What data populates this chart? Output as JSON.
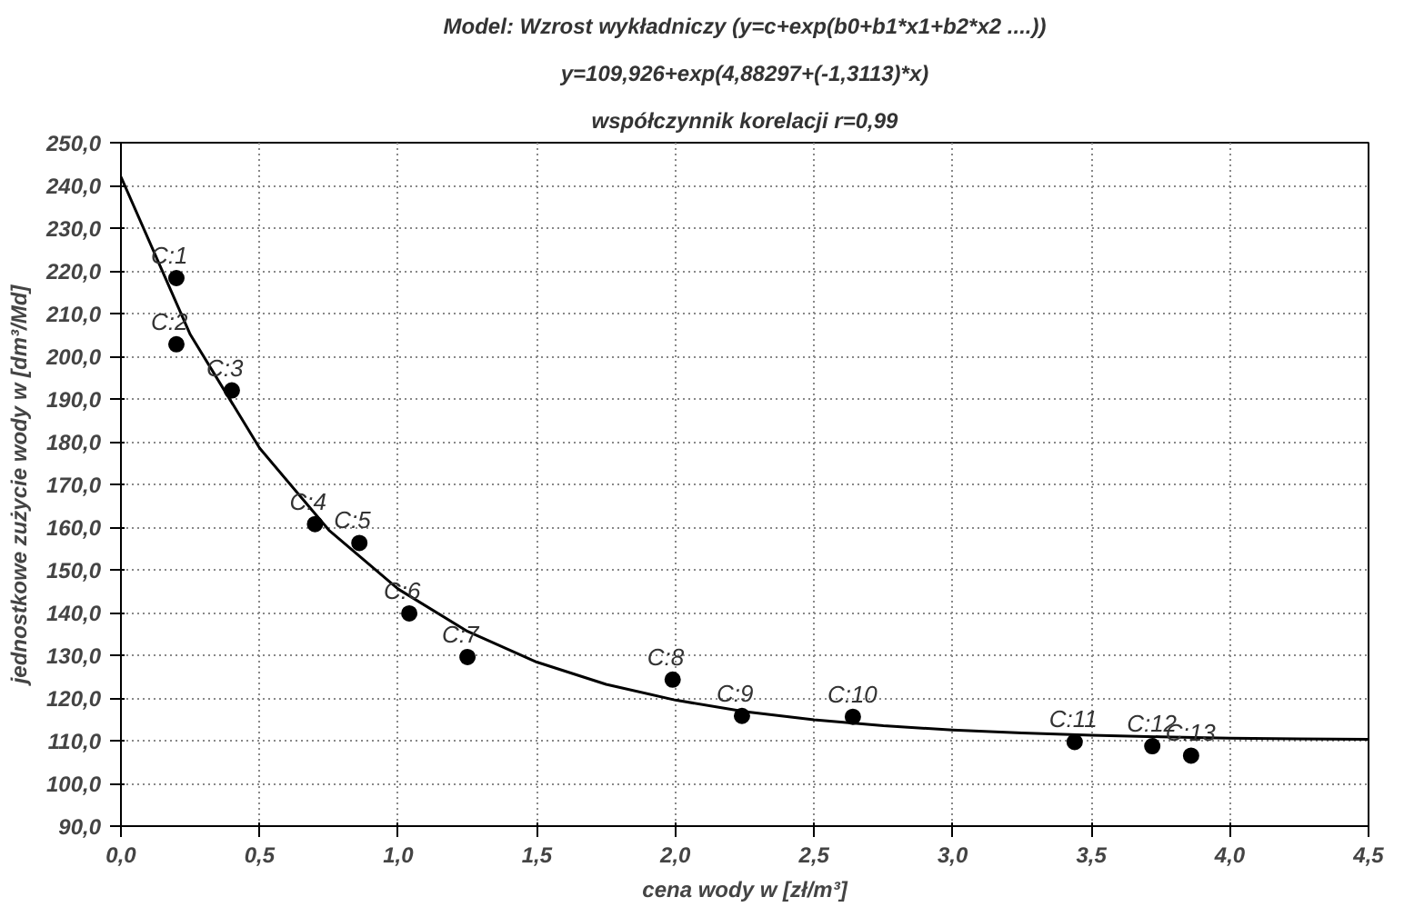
{
  "chart_data": {
    "type": "scatter",
    "title": "Model: Wzrost wykładniczy (y=c+exp(b0+b1*x1+b2*x2 ....))",
    "subtitle": "y=109,926+exp(4,88297+(-1,3113)*x)",
    "xlabel": "cena wody w [zł/m³]",
    "ylabel": "jednostkowe zużycie wody w [dm³/Md]",
    "series": [
      {
        "color": "#000000",
        "marker": "circle",
        "x": [
          0.2,
          0.2,
          0.4,
          0.7,
          0.86,
          1.04,
          1.25,
          1.99,
          2.24,
          2.64,
          3.44,
          3.72,
          3.86
        ],
        "values": [
          218.3,
          202.8,
          192.0,
          160.7,
          156.3,
          139.8,
          129.6,
          124.3,
          115.8,
          115.6,
          109.7,
          108.7,
          106.5
        ]
      },
      {
        "type": "line",
        "color": "#000000",
        "line_style": "solid",
        "x": [
          0,
          0.25,
          0.5,
          0.75,
          1.0,
          1.25,
          1.5,
          1.75,
          2.0,
          2.25,
          2.5,
          2.75,
          3.0,
          3.25,
          3.5,
          3.75,
          4.0,
          4.25,
          4.5
        ],
        "values": [
          242.0,
          205.1,
          178.5,
          159.3,
          145.5,
          135.6,
          128.4,
          123.2,
          119.5,
          116.8,
          114.9,
          113.5,
          112.5,
          111.8,
          111.3,
          110.9,
          110.6,
          110.4,
          110.3
        ]
      }
    ],
    "annotations": [
      "współczynnik korelacji r=0,99",
      {
        "text": "C:1",
        "x": 0.2,
        "y": 218.3
      },
      {
        "text": "C:2",
        "x": 0.2,
        "y": 202.8
      },
      {
        "text": "C:3",
        "x": 0.4,
        "y": 192.0
      },
      {
        "text": "C:4",
        "x": 0.7,
        "y": 160.7
      },
      {
        "text": "C:5",
        "x": 0.86,
        "y": 156.3
      },
      {
        "text": "C:6",
        "x": 1.04,
        "y": 139.8
      },
      {
        "text": "C:7",
        "x": 1.25,
        "y": 129.6
      },
      {
        "text": "C:8",
        "x": 1.99,
        "y": 124.3
      },
      {
        "text": "C:9",
        "x": 2.24,
        "y": 115.8
      },
      {
        "text": "C:10",
        "x": 2.64,
        "y": 115.6
      },
      {
        "text": "C:11",
        "x": 3.44,
        "y": 109.7
      },
      {
        "text": "C:12",
        "x": 3.72,
        "y": 108.7
      },
      {
        "text": "C:13",
        "x": 3.86,
        "y": 106.5
      }
    ],
    "xlim": [
      0,
      4.5
    ],
    "ylim": [
      90,
      250
    ],
    "xticks": [
      {
        "value": 0,
        "label": "0,0"
      },
      {
        "value": 0.5,
        "label": "0,5"
      },
      {
        "value": 1.0,
        "label": "1,0"
      },
      {
        "value": 1.5,
        "label": "1,5"
      },
      {
        "value": 2.0,
        "label": "2,0"
      },
      {
        "value": 2.5,
        "label": "2,5"
      },
      {
        "value": 3.0,
        "label": "3,0"
      },
      {
        "value": 3.5,
        "label": "3,5"
      },
      {
        "value": 4.0,
        "label": "4,0"
      },
      {
        "value": 4.5,
        "label": "4,5"
      }
    ],
    "yticks": [
      {
        "value": 90,
        "label": "90,0"
      },
      {
        "value": 100,
        "label": "100,0"
      },
      {
        "value": 110,
        "label": "110,0"
      },
      {
        "value": 120,
        "label": "120,0"
      },
      {
        "value": 130,
        "label": "130,0"
      },
      {
        "value": 140,
        "label": "140,0"
      },
      {
        "value": 150,
        "label": "150,0"
      },
      {
        "value": 160,
        "label": "160,0"
      },
      {
        "value": 170,
        "label": "170,0"
      },
      {
        "value": 180,
        "label": "180,0"
      },
      {
        "value": 190,
        "label": "190,0"
      },
      {
        "value": 200,
        "label": "200,0"
      },
      {
        "value": 210,
        "label": "210,0"
      },
      {
        "value": 220,
        "label": "220,0"
      },
      {
        "value": 230,
        "label": "230,0"
      },
      {
        "value": 240,
        "label": "240,0"
      },
      {
        "value": 250,
        "label": "250,0"
      }
    ],
    "grid": true
  }
}
